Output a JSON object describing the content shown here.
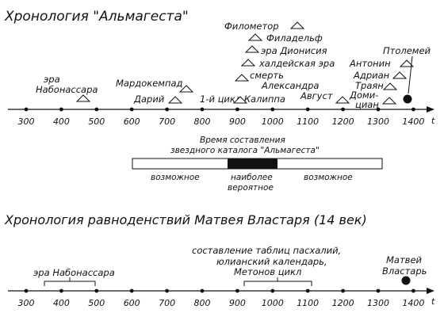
{
  "top": {
    "title": "Хронология \"Альмагеста\"",
    "axis_letter": "t",
    "ticks": [
      "300",
      "400",
      "500",
      "600",
      "700",
      "800",
      "900",
      "1000",
      "1100",
      "1200",
      "1300",
      "1400"
    ],
    "events": [
      {
        "name": "era-nabonassar",
        "lines": [
          "эра",
          "Набонассара"
        ],
        "year": 465
      },
      {
        "name": "mardokempad",
        "lines": [
          "Мардокемпад"
        ],
        "year": 738
      },
      {
        "name": "darius",
        "lines": [
          "Дарий"
        ],
        "year": 708
      },
      {
        "name": "first-cycle-callippus",
        "lines": [
          "1-й цикл  Калиппа"
        ],
        "year": 903
      },
      {
        "name": "philometor",
        "lines": [
          "Филометор"
        ],
        "year": 1063
      },
      {
        "name": "philadelphus",
        "lines": [
          "Филадельф"
        ],
        "year": 944
      },
      {
        "name": "era-dionysius",
        "lines": [
          "эра  Дионисия"
        ],
        "year": 935
      },
      {
        "name": "chaldean-era",
        "lines": [
          "халдейская эра"
        ],
        "year": 922
      },
      {
        "name": "death-alexander",
        "lines": [
          "смерть",
          "Александра"
        ],
        "year": 907
      },
      {
        "name": "augustus",
        "lines": [
          "Август"
        ],
        "year": 1208
      },
      {
        "name": "antoninus",
        "lines": [
          "Антонин"
        ],
        "year": 1358
      },
      {
        "name": "hadrian",
        "lines": [
          "Адриан"
        ],
        "year": 1345
      },
      {
        "name": "trajan",
        "lines": [
          "Траян"
        ],
        "year": 1332
      },
      {
        "name": "domitian",
        "lines": [
          "Доми-",
          "циан"
        ],
        "year": 1318
      }
    ],
    "ptolemy": "Птолемей",
    "bar": {
      "caption": [
        "Время составления",
        "звездного каталога \"Альмагеста\""
      ],
      "possible_left": "возможное",
      "most_likely": [
        "наиболее",
        "вероятное"
      ],
      "possible_right": "возможное"
    }
  },
  "bottom": {
    "title": "Хронология  равноденствий  Матвея  Властаря  (14 век)",
    "axis_letter": "t",
    "ticks": [
      "300",
      "400",
      "500",
      "600",
      "700",
      "800",
      "900",
      "1000",
      "1100",
      "1200",
      "1300",
      "1400"
    ],
    "era_nabonassar": "эра  Набонассара",
    "tables": [
      "составление  таблиц пасхалий,",
      "юлианский календарь,",
      "Метонов  цикл"
    ],
    "vlastar": [
      "Матвей",
      "Властарь"
    ]
  }
}
